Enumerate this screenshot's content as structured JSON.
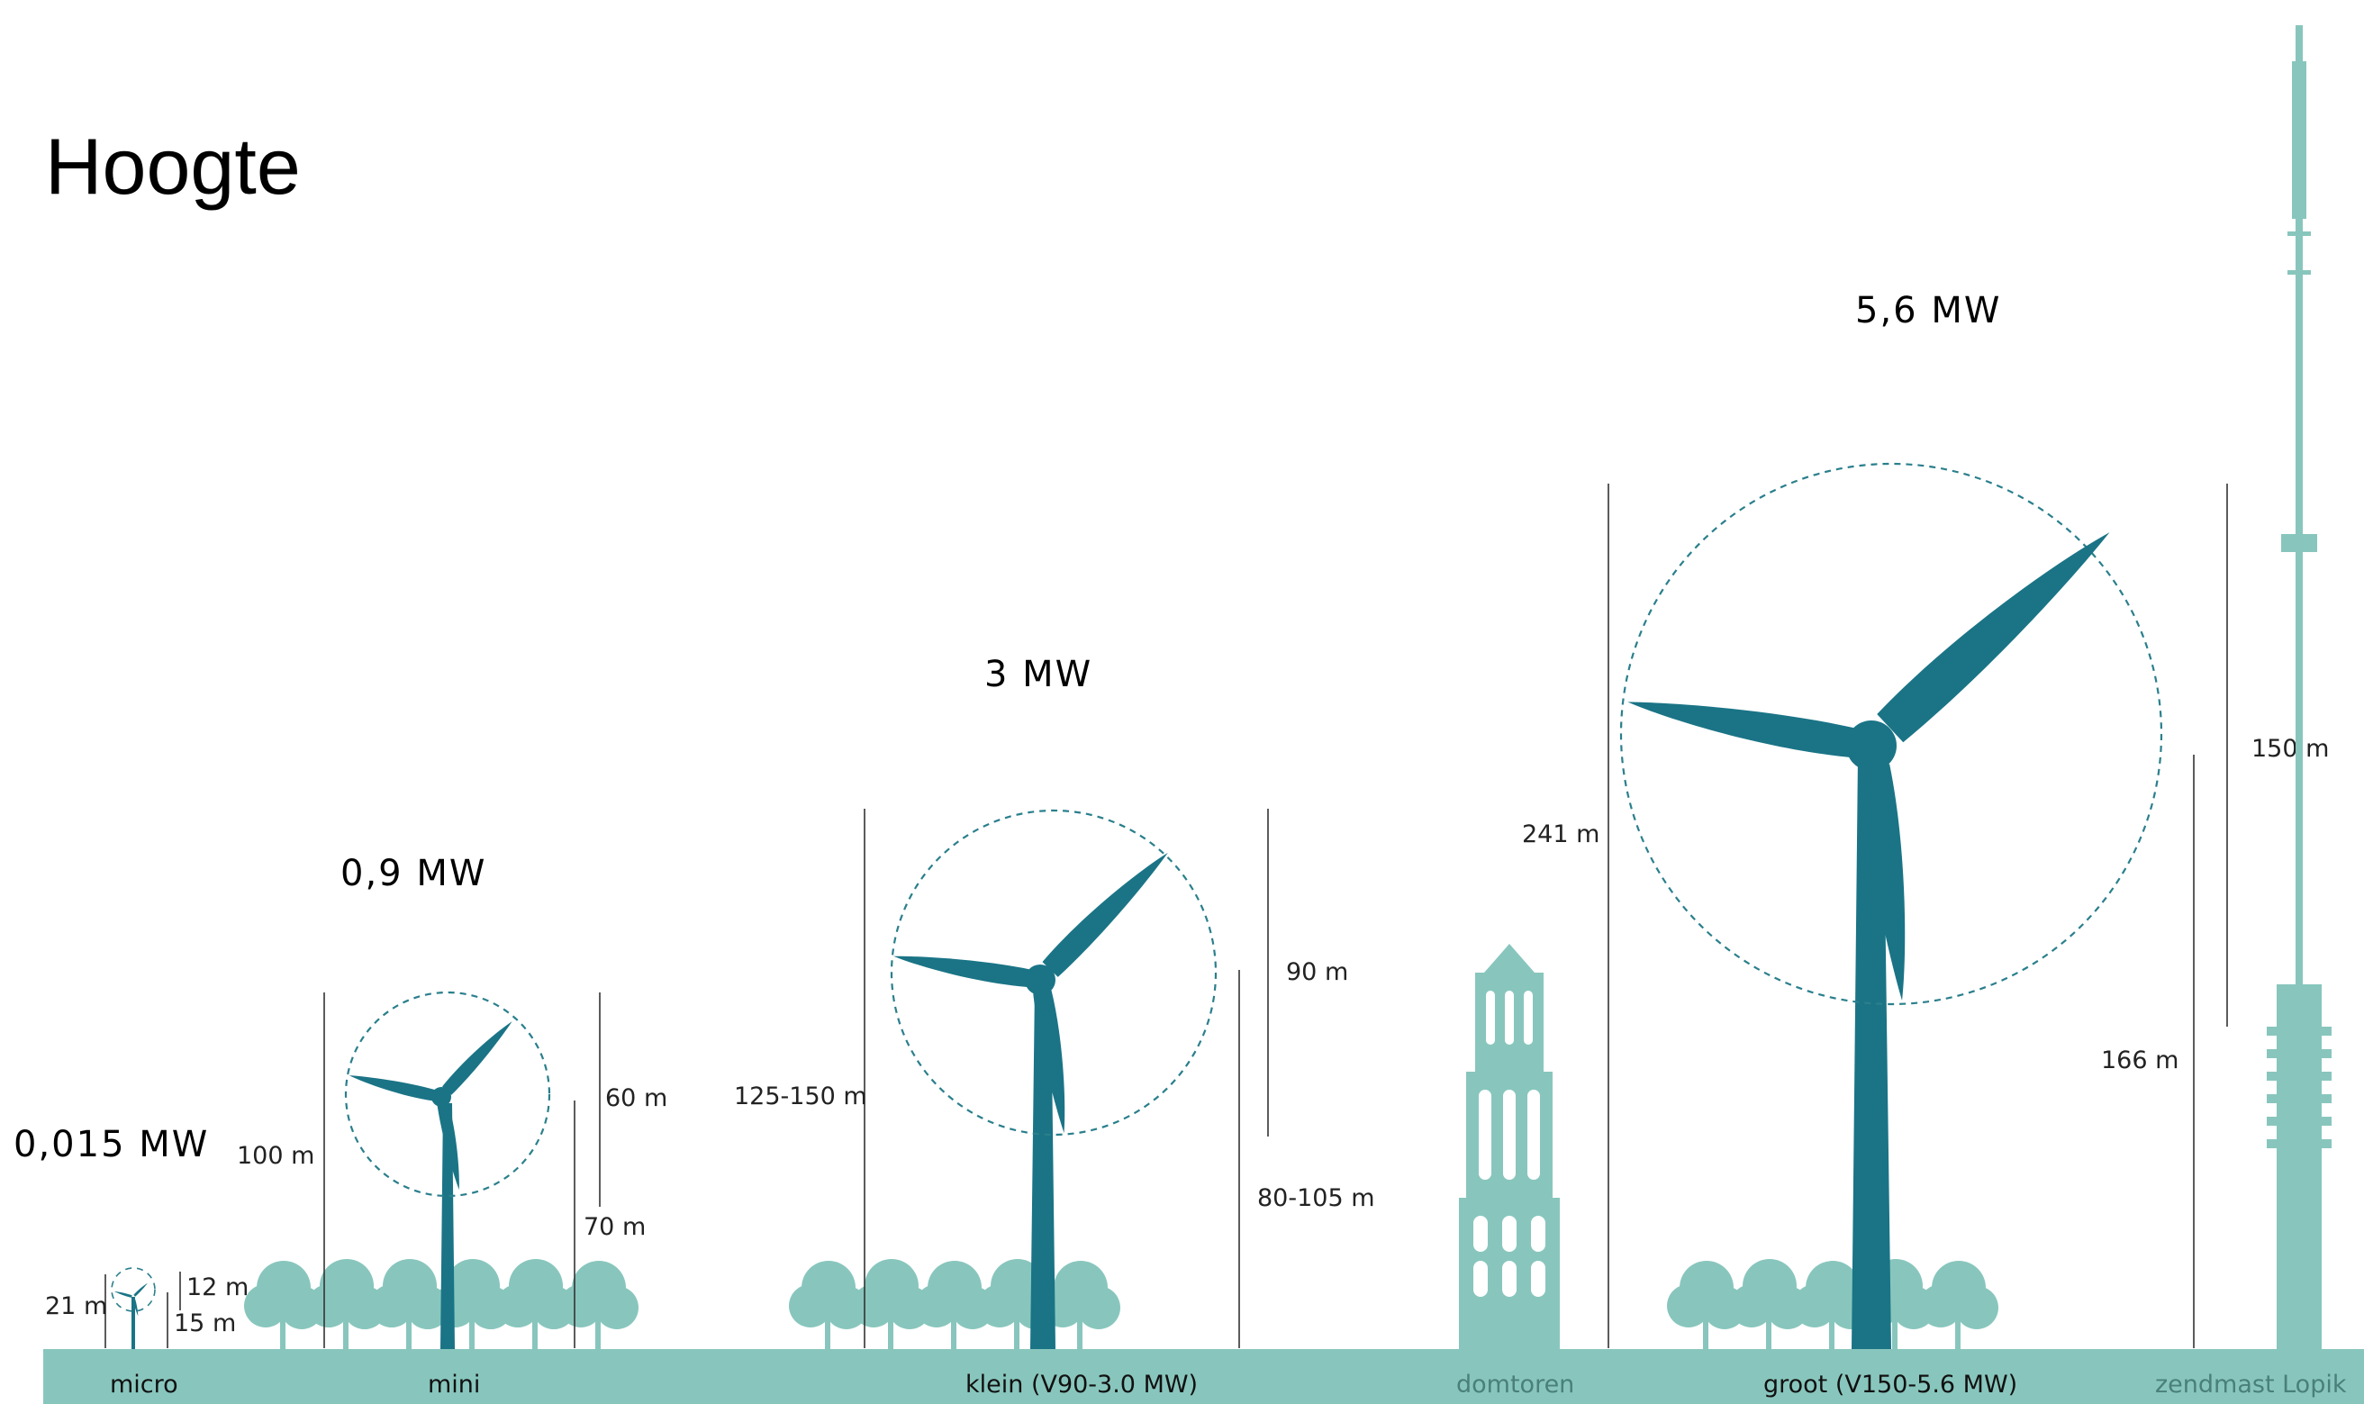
{
  "title": "Hoogte",
  "colors": {
    "ground": "#88c6bd",
    "turbine": "#1a7486",
    "trees": "#88c6bd",
    "tower": "#88c6bd"
  },
  "power": {
    "micro": "0,015 MW",
    "mini": "0,9 MW",
    "klein": "3 MW",
    "groot": "5,6 MW"
  },
  "ground_labels": {
    "micro": "micro",
    "mini": "mini",
    "klein": "klein (V90-3.0 MW)",
    "domtoren": "domtoren",
    "groot": "groot (V150-5.6 MW)",
    "zendmast": "zendmast Lopik"
  },
  "dimensions": {
    "micro_total": "21 m",
    "micro_rotor": "12 m",
    "micro_hub": "15 m",
    "mini_total": "100 m",
    "mini_rotor": "60 m",
    "mini_hub": "70 m",
    "klein_total": "125-150 m",
    "klein_rotor": "90 m",
    "klein_hub": "80-105 m",
    "groot_total": "241 m",
    "groot_rotor": "150 m",
    "groot_hub": "166 m"
  }
}
